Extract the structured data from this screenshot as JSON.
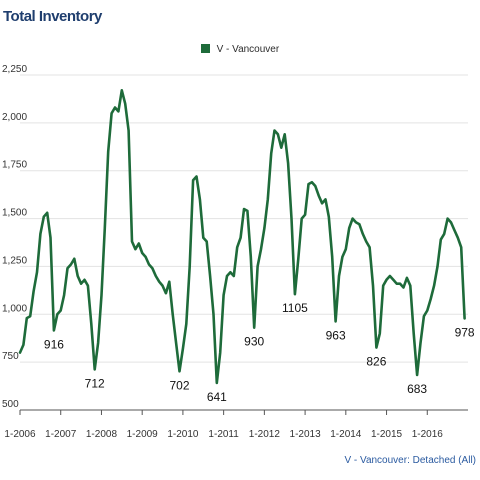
{
  "title": "Total Inventory",
  "source_label": "V - Vancouver: Detached (All)",
  "chart_data": {
    "type": "line",
    "title": "Total Inventory",
    "xlabel": "",
    "ylabel": "",
    "ylim": [
      500,
      2250
    ],
    "xlim": [
      "2006-01",
      "2016-12"
    ],
    "grid": true,
    "legend_position": "top-center",
    "x_ticks": [
      "1-2006",
      "1-2007",
      "1-2008",
      "1-2009",
      "1-2010",
      "1-2011",
      "1-2012",
      "1-2013",
      "1-2014",
      "1-2015",
      "1-2016"
    ],
    "y_ticks": [
      "500",
      "750",
      "1,000",
      "1,250",
      "1,500",
      "1,750",
      "2,000",
      "2,250"
    ],
    "y_tick_values": [
      500,
      750,
      1000,
      1250,
      1500,
      1750,
      2000,
      2250
    ],
    "series": [
      {
        "name": "V - Vancouver",
        "color": "#1e6b3a",
        "x": [
          "2006-01",
          "2006-02",
          "2006-03",
          "2006-04",
          "2006-05",
          "2006-06",
          "2006-07",
          "2006-08",
          "2006-09",
          "2006-10",
          "2006-11",
          "2006-12",
          "2007-01",
          "2007-02",
          "2007-03",
          "2007-04",
          "2007-05",
          "2007-06",
          "2007-07",
          "2007-08",
          "2007-09",
          "2007-10",
          "2007-11",
          "2007-12",
          "2008-01",
          "2008-02",
          "2008-03",
          "2008-04",
          "2008-05",
          "2008-06",
          "2008-07",
          "2008-08",
          "2008-09",
          "2008-10",
          "2008-11",
          "2008-12",
          "2009-01",
          "2009-02",
          "2009-03",
          "2009-04",
          "2009-05",
          "2009-06",
          "2009-07",
          "2009-08",
          "2009-09",
          "2009-10",
          "2009-11",
          "2009-12",
          "2010-01",
          "2010-02",
          "2010-03",
          "2010-04",
          "2010-05",
          "2010-06",
          "2010-07",
          "2010-08",
          "2010-09",
          "2010-10",
          "2010-11",
          "2010-12",
          "2011-01",
          "2011-02",
          "2011-03",
          "2011-04",
          "2011-05",
          "2011-06",
          "2011-07",
          "2011-08",
          "2011-09",
          "2011-10",
          "2011-11",
          "2011-12",
          "2012-01",
          "2012-02",
          "2012-03",
          "2012-04",
          "2012-05",
          "2012-06",
          "2012-07",
          "2012-08",
          "2012-09",
          "2012-10",
          "2012-11",
          "2012-12",
          "2013-01",
          "2013-02",
          "2013-03",
          "2013-04",
          "2013-05",
          "2013-06",
          "2013-07",
          "2013-08",
          "2013-09",
          "2013-10",
          "2013-11",
          "2013-12",
          "2014-01",
          "2014-02",
          "2014-03",
          "2014-04",
          "2014-05",
          "2014-06",
          "2014-07",
          "2014-08",
          "2014-09",
          "2014-10",
          "2014-11",
          "2014-12",
          "2015-01",
          "2015-02",
          "2015-03",
          "2015-04",
          "2015-05",
          "2015-06",
          "2015-07",
          "2015-08",
          "2015-09",
          "2015-10",
          "2015-11",
          "2015-12",
          "2016-01",
          "2016-02",
          "2016-03",
          "2016-04",
          "2016-05",
          "2016-06",
          "2016-07",
          "2016-08",
          "2016-09",
          "2016-10",
          "2016-11",
          "2016-12"
        ],
        "values": [
          800,
          840,
          980,
          990,
          1120,
          1220,
          1420,
          1510,
          1530,
          1400,
          916,
          1000,
          1020,
          1100,
          1240,
          1260,
          1290,
          1200,
          1160,
          1180,
          1150,
          950,
          712,
          850,
          1100,
          1450,
          1850,
          2050,
          2080,
          2060,
          2170,
          2100,
          1960,
          1380,
          1340,
          1370,
          1320,
          1300,
          1260,
          1240,
          1200,
          1170,
          1150,
          1110,
          1170,
          1000,
          850,
          702,
          820,
          950,
          1250,
          1700,
          1720,
          1600,
          1400,
          1380,
          1200,
          1000,
          641,
          800,
          1100,
          1200,
          1220,
          1200,
          1350,
          1400,
          1550,
          1540,
          1300,
          930,
          1250,
          1340,
          1450,
          1600,
          1840,
          1960,
          1940,
          1870,
          1940,
          1790,
          1500,
          1105,
          1290,
          1500,
          1520,
          1680,
          1690,
          1670,
          1620,
          1580,
          1600,
          1510,
          1300,
          963,
          1200,
          1300,
          1340,
          1450,
          1500,
          1480,
          1470,
          1420,
          1380,
          1350,
          1150,
          826,
          900,
          1150,
          1180,
          1200,
          1180,
          1160,
          1160,
          1140,
          1190,
          1150,
          900,
          683,
          850,
          990,
          1020,
          1080,
          1150,
          1250,
          1390,
          1420,
          1500,
          1480,
          1440,
          1400,
          1350,
          978
        ]
      }
    ],
    "annotations": [
      {
        "x": "2006-11",
        "value": 916,
        "text": "916"
      },
      {
        "x": "2007-11",
        "value": 712,
        "text": "712"
      },
      {
        "x": "2009-12",
        "value": 702,
        "text": "702"
      },
      {
        "x": "2010-11",
        "value": 641,
        "text": "641"
      },
      {
        "x": "2011-10",
        "value": 930,
        "text": "930"
      },
      {
        "x": "2012-10",
        "value": 1105,
        "text": "1105"
      },
      {
        "x": "2013-10",
        "value": 963,
        "text": "963"
      },
      {
        "x": "2014-10",
        "value": 826,
        "text": "826"
      },
      {
        "x": "2015-10",
        "value": 683,
        "text": "683"
      },
      {
        "x": "2016-12",
        "value": 978,
        "text": "978"
      }
    ]
  }
}
